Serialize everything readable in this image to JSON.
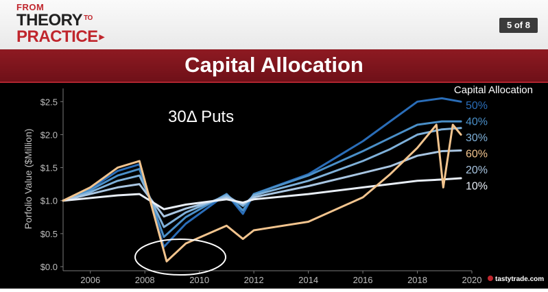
{
  "header": {
    "logo_from": "FROM",
    "logo_theory": "THEORY",
    "logo_to": "TO",
    "logo_practice": "PRACTICE",
    "page_indicator": "5 of 8",
    "title": "Capital Allocation"
  },
  "watermark": "tastytrade.com",
  "chart_data": {
    "type": "line",
    "title": "30Δ Puts",
    "xlabel": "",
    "ylabel": "Porfolio Value ($Million)",
    "xlim": [
      2005,
      2020
    ],
    "ylim": [
      0,
      2.7
    ],
    "xticks": [
      2006,
      2008,
      2010,
      2012,
      2014,
      2016,
      2018,
      2020
    ],
    "xtick_labels": [
      "2006",
      "2008",
      "2010",
      "2012",
      "2014",
      "2016",
      "2018",
      "2020"
    ],
    "yticks": [
      0,
      0.5,
      1.0,
      1.5,
      2.0,
      2.5
    ],
    "ytick_labels": [
      "$0.0",
      "$0.5",
      "$1.0",
      "$1.5",
      "$2.0",
      "$2.5"
    ],
    "legend_title": "Capital Allocation",
    "legend_position": "right",
    "grid": false,
    "annotation": "ellipse around the 2008-2009 low",
    "series": [
      {
        "name": "10%",
        "color": "#e8eef6",
        "x": [
          2005,
          2006,
          2007,
          2007.8,
          2008.7,
          2009.5,
          2011,
          2011.6,
          2012,
          2014,
          2016,
          2017,
          2018,
          2018.9,
          2019.6
        ],
        "values": [
          1.0,
          1.04,
          1.08,
          1.1,
          0.87,
          0.94,
          1.02,
          0.97,
          1.02,
          1.1,
          1.2,
          1.25,
          1.3,
          1.32,
          1.34
        ]
      },
      {
        "name": "20%",
        "color": "#a9c6e2",
        "x": [
          2005,
          2006,
          2007,
          2007.8,
          2008.7,
          2009.5,
          2011,
          2011.6,
          2012,
          2014,
          2016,
          2017,
          2018,
          2018.9,
          2019.6
        ],
        "values": [
          1.0,
          1.1,
          1.2,
          1.25,
          0.76,
          0.88,
          1.05,
          0.95,
          1.05,
          1.22,
          1.42,
          1.52,
          1.68,
          1.75,
          1.76
        ]
      },
      {
        "name": "30%",
        "color": "#7fb1da",
        "x": [
          2005,
          2006,
          2007,
          2007.8,
          2008.7,
          2009.5,
          2011,
          2011.6,
          2012,
          2014,
          2016,
          2017,
          2018,
          2018.9,
          2019.6
        ],
        "values": [
          1.0,
          1.13,
          1.3,
          1.38,
          0.6,
          0.82,
          1.08,
          0.92,
          1.08,
          1.3,
          1.6,
          1.78,
          2.0,
          2.08,
          2.1
        ]
      },
      {
        "name": "40%",
        "color": "#4a8fc8",
        "x": [
          2005,
          2006,
          2007,
          2007.8,
          2008.7,
          2009.5,
          2011,
          2011.6,
          2012,
          2014,
          2016,
          2017,
          2018,
          2018.9,
          2019.6
        ],
        "values": [
          1.0,
          1.16,
          1.38,
          1.48,
          0.45,
          0.75,
          1.1,
          0.85,
          1.1,
          1.38,
          1.75,
          1.95,
          2.15,
          2.2,
          2.2
        ]
      },
      {
        "name": "50%",
        "color": "#2a6db8",
        "x": [
          2005,
          2006,
          2007,
          2007.8,
          2008.7,
          2009.5,
          2011,
          2011.6,
          2012,
          2014,
          2016,
          2017,
          2018,
          2018.9,
          2019.6
        ],
        "values": [
          1.0,
          1.18,
          1.45,
          1.55,
          0.3,
          0.65,
          1.1,
          0.8,
          1.1,
          1.4,
          1.9,
          2.2,
          2.5,
          2.55,
          2.5
        ]
      },
      {
        "name": "60%",
        "color": "#f2c48e",
        "x": [
          2005,
          2006,
          2007,
          2007.8,
          2008.8,
          2009.5,
          2011,
          2011.6,
          2012,
          2014,
          2016,
          2017,
          2018,
          2018.7,
          2018.95,
          2019.3,
          2019.6
        ],
        "values": [
          1.0,
          1.2,
          1.5,
          1.6,
          0.08,
          0.35,
          0.62,
          0.42,
          0.55,
          0.68,
          1.05,
          1.4,
          1.8,
          2.15,
          1.2,
          2.15,
          2.0
        ]
      }
    ]
  }
}
